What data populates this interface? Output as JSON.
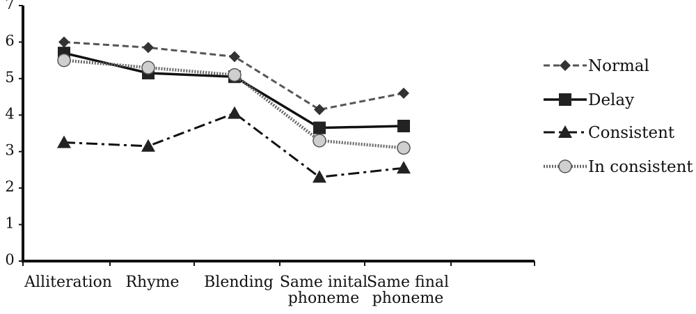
{
  "chart_data": {
    "type": "line",
    "title": "",
    "xlabel": "",
    "ylabel": "",
    "ylim": [
      0,
      7
    ],
    "y_ticks": [
      "0",
      "1",
      "2",
      "3",
      "4",
      "5",
      "6",
      "7"
    ],
    "categories": [
      [
        "Alliteration"
      ],
      [
        "Rhyme"
      ],
      [
        "Blending"
      ],
      [
        "Same inital",
        "phoneme"
      ],
      [
        "Same final",
        "phoneme"
      ]
    ],
    "legend_position": "right",
    "grid": false,
    "series": [
      {
        "name": "Normal",
        "values": [
          6.0,
          5.85,
          5.6,
          4.15,
          4.6
        ],
        "color": "#555555",
        "line_style": "dashed",
        "marker": "diamond"
      },
      {
        "name": "Delay",
        "values": [
          5.7,
          5.15,
          5.05,
          3.65,
          3.7
        ],
        "color": "#111111",
        "line_style": "solid",
        "marker": "square"
      },
      {
        "name": "Consistent",
        "values": [
          3.25,
          3.15,
          4.05,
          2.3,
          2.55
        ],
        "color": "#111111",
        "line_style": "dashdot",
        "marker": "triangle"
      },
      {
        "name": "In consistent",
        "values": [
          5.5,
          5.3,
          5.1,
          3.3,
          3.1
        ],
        "color": "#666666",
        "line_style": "dotted",
        "marker": "circle"
      }
    ]
  }
}
